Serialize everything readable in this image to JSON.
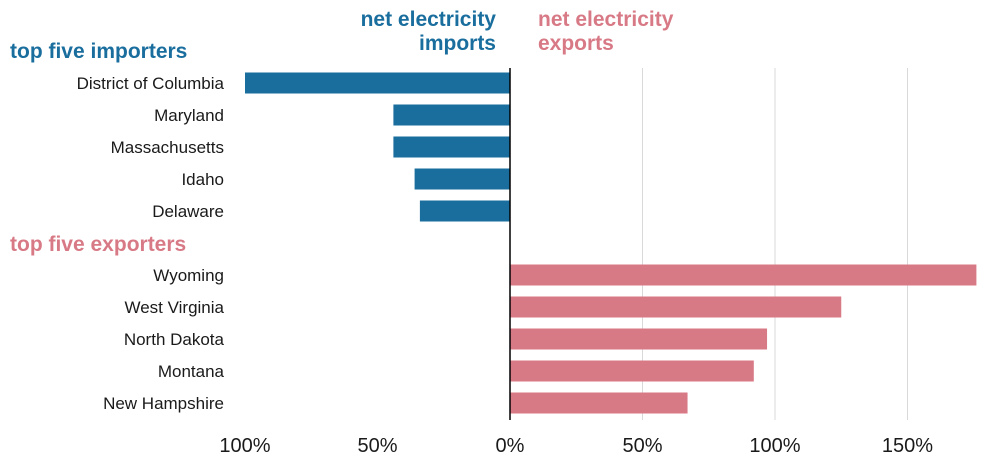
{
  "chart_data": {
    "type": "bar",
    "orientation": "horizontal",
    "header_left": "net electricity imports",
    "header_right": "net electricity exports",
    "groups": [
      {
        "label": "top five importers",
        "color": "#1a6e9e"
      },
      {
        "label": "top five exporters",
        "color": "#d87986"
      }
    ],
    "categories": [
      "District of Columbia",
      "Maryland",
      "Massachusetts",
      "Idaho",
      "Delaware",
      "Wyoming",
      "West Virginia",
      "North Dakota",
      "Montana",
      "New Hampshire"
    ],
    "values": [
      -100,
      -44,
      -44,
      -36,
      -34,
      176,
      125,
      97,
      92,
      67
    ],
    "series": [
      {
        "values": [
          -100,
          -44,
          -44,
          -36,
          -34,
          null,
          null,
          null,
          null,
          null
        ],
        "color": "#1a6e9e"
      },
      {
        "values": [
          null,
          null,
          null,
          null,
          null,
          176,
          125,
          97,
          92,
          67
        ],
        "color": "#d87986"
      }
    ],
    "xlim": [
      -100,
      180
    ],
    "xticks": [
      -100,
      -50,
      0,
      50,
      100,
      150
    ],
    "xtick_labels": [
      "100%",
      "50%",
      "0%",
      "50%",
      "100%",
      "150%"
    ],
    "grid": true,
    "legend": "none"
  }
}
